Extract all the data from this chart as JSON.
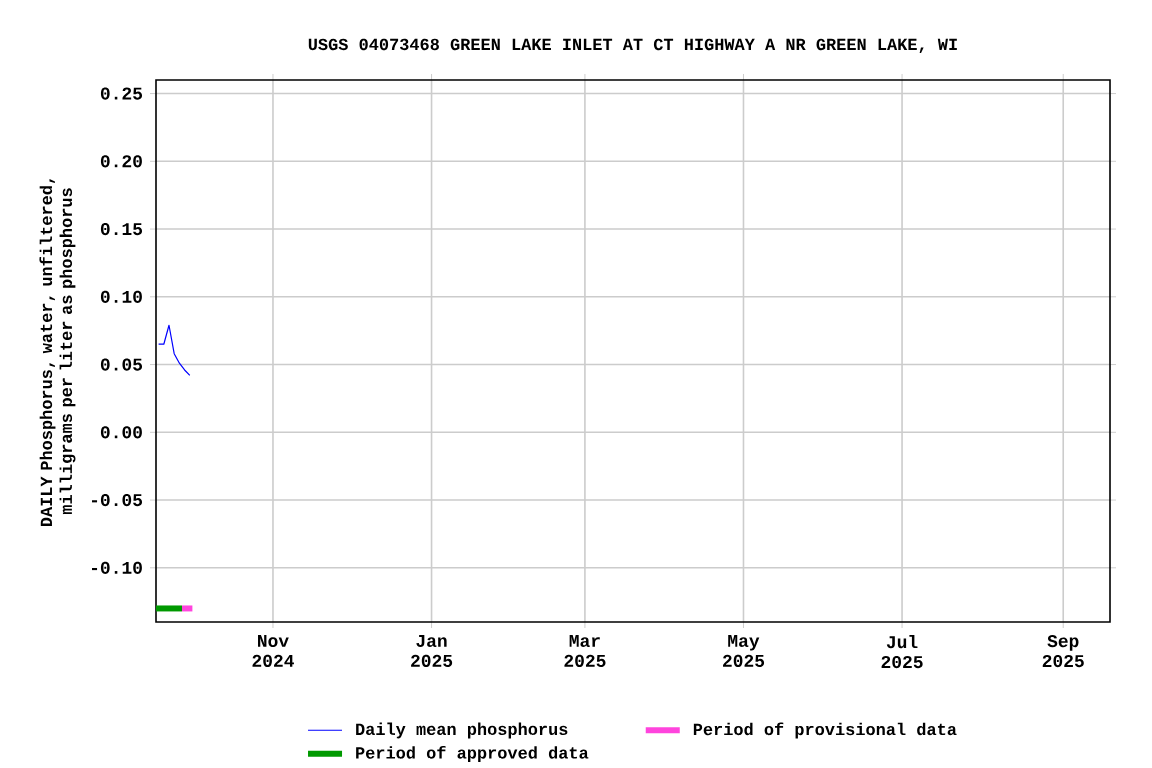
{
  "chart_data": {
    "type": "line",
    "title": "USGS 04073468 GREEN LAKE INLET AT CT HIGHWAY A NR GREEN LAKE, WI",
    "ylabel": "DAILY Phosphorus, water, unfiltered, milligrams per liter as phosphorus",
    "xlim": [
      "2024-09-17",
      "2025-09-19"
    ],
    "xticks": [
      {
        "value": "2024-11-01",
        "label": "Nov 2024"
      },
      {
        "value": "2025-01-01",
        "label": "Jan 2025"
      },
      {
        "value": "2025-03-01",
        "label": "Mar 2025"
      },
      {
        "value": "2025-05-01",
        "label": "May 2025"
      },
      {
        "value": "2025-07-01",
        "label": "Jul 2025"
      },
      {
        "value": "2025-09-01",
        "label": "Sep 2025"
      }
    ],
    "ylim": [
      -0.14,
      0.26
    ],
    "yticks": [
      {
        "value": -0.1,
        "label": "-0.10"
      },
      {
        "value": -0.05,
        "label": "-0.05"
      },
      {
        "value": 0,
        "label": "0.00"
      },
      {
        "value": 0.05,
        "label": "0.05"
      },
      {
        "value": 0.1,
        "label": "0.10"
      },
      {
        "value": 0.15,
        "label": "0.15"
      },
      {
        "value": 0.2,
        "label": "0.20"
      },
      {
        "value": 0.25,
        "label": "0.25"
      }
    ],
    "grid": true,
    "legend": "bottom",
    "marker": "none",
    "series": [
      {
        "name": "Daily mean phosphorus",
        "color": "#0000ff",
        "x": [
          "2024-09-18",
          "2024-09-20",
          "2024-09-22",
          "2024-09-24",
          "2024-09-26",
          "2024-09-28",
          "2024-09-30"
        ],
        "values": [
          0.065,
          0.065,
          0.079,
          0.058,
          0.051,
          0.046,
          0.042
        ]
      },
      {
        "name": "Period of provisional data",
        "color": "#ff44dd",
        "x": [
          "2024-09-27",
          "2024-10-01"
        ],
        "values": [
          -0.13,
          -0.13
        ]
      },
      {
        "name": "Period of approved data",
        "color": "#009900",
        "x": [
          "2024-09-17",
          "2024-09-27"
        ],
        "values": [
          -0.13,
          -0.13
        ]
      }
    ]
  }
}
